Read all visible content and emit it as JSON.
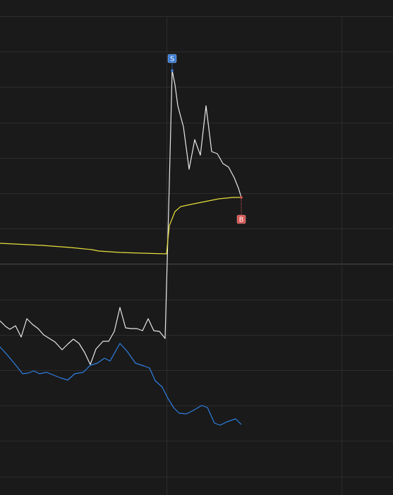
{
  "chart_data": {
    "type": "line",
    "xlim": [
      0,
      69.625
    ],
    "ylim": [
      -6.54,
      7.5
    ],
    "series": [
      {
        "color": "#e8e8e8",
        "x": [
          0,
          1,
          1.75,
          2.75,
          3.75,
          4.75,
          5.75,
          6.75,
          7.75,
          8.75,
          9.75,
          11,
          12,
          13,
          14,
          15,
          16,
          17,
          18.25,
          19.25,
          20.25,
          21.25,
          22.25,
          23.25,
          24.25,
          25.25,
          26.25,
          27.25,
          28.25,
          29.25,
          30,
          30.5,
          31,
          31.5,
          32.5,
          33.5,
          34.5,
          35.5,
          36.5,
          37.5,
          38.5,
          39.5,
          40.5,
          41.5,
          42.25,
          42.75
        ],
        "values": [
          -1.6,
          -1.76,
          -1.84,
          -1.74,
          -2.06,
          -1.54,
          -1.7,
          -1.82,
          -2.0,
          -2.1,
          -2.2,
          -2.42,
          -2.26,
          -2.12,
          -2.24,
          -2.5,
          -2.84,
          -2.4,
          -2.18,
          -2.18,
          -1.9,
          -1.22,
          -1.8,
          -1.82,
          -1.82,
          -1.88,
          -1.54,
          -1.88,
          -1.9,
          -2.1,
          2.3,
          5.5,
          5.1,
          4.5,
          3.9,
          2.7,
          3.54,
          3.1,
          4.5,
          3.2,
          3.14,
          2.86,
          2.76,
          2.46,
          2.16,
          1.9
        ]
      },
      {
        "color": "#e6df3a",
        "x": [
          0,
          7.5,
          12.5,
          16.25,
          17.5,
          21.25,
          25,
          29.5,
          30,
          31,
          32,
          33.75,
          36.25,
          38.75,
          41.25,
          42.75
        ],
        "values": [
          0.6,
          0.54,
          0.48,
          0.42,
          0.38,
          0.34,
          0.32,
          0.3,
          1.1,
          1.5,
          1.64,
          1.7,
          1.78,
          1.86,
          1.9,
          1.9
        ]
      },
      {
        "color": "#2f7fe0",
        "x": [
          0,
          1.25,
          2.5,
          4,
          5,
          6,
          7,
          8.25,
          9.5,
          10.75,
          12,
          13.25,
          14.75,
          16,
          17.25,
          18.5,
          19.5,
          21.25,
          22.5,
          24,
          25.5,
          26.5,
          27.5,
          28.75,
          29.75,
          30.75,
          31.75,
          33,
          34.25,
          35.75,
          36.75,
          38,
          39,
          40.25,
          41.75,
          42.75
        ],
        "values": [
          -2.34,
          -2.56,
          -2.8,
          -3.1,
          -3.08,
          -3.02,
          -3.1,
          -3.06,
          -3.14,
          -3.22,
          -3.28,
          -3.1,
          -3.06,
          -2.86,
          -2.8,
          -2.66,
          -2.74,
          -2.24,
          -2.46,
          -2.8,
          -2.88,
          -2.94,
          -3.3,
          -3.48,
          -3.8,
          -4.06,
          -4.22,
          -4.24,
          -4.14,
          -4,
          -4.06,
          -4.5,
          -4.56,
          -4.46,
          -4.38,
          -4.54
        ]
      }
    ],
    "annotations": [
      {
        "text": "S",
        "x": 30.5,
        "y": 5.5,
        "color": "#3a7bd5"
      },
      {
        "text": "B",
        "x": 42.75,
        "y": 1.9,
        "color": "#d9534f"
      }
    ]
  }
}
